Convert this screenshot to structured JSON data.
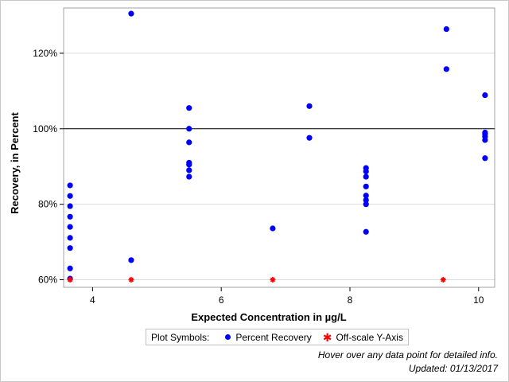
{
  "legend": {
    "title": "Plot Symbols:",
    "items": [
      {
        "label": "Percent Recovery",
        "symbol": "dot-icon",
        "color": "#0000ff"
      },
      {
        "label": "Off-scale Y-Axis",
        "symbol": "asterisk-icon",
        "color": "#ff0000"
      }
    ]
  },
  "footnotes": {
    "hover": "Hover over any data point for detailed info.",
    "updated": "Updated: 01/13/2017"
  },
  "chart_data": {
    "type": "scatter",
    "title": "",
    "xlabel": "Expected Concentration in µg/L",
    "ylabel": "Recovery, in Percent",
    "xlim": [
      3.55,
      10.25
    ],
    "ylim": [
      58.0,
      132.0
    ],
    "xticks": [
      4,
      6,
      8,
      10
    ],
    "xtick_labels": [
      "4",
      "6",
      "8",
      "10"
    ],
    "yticks": [
      60,
      80,
      100,
      120
    ],
    "ytick_labels": [
      "60%",
      "80%",
      "100%",
      "120%"
    ],
    "reference_line": 100,
    "grid": "horizontal",
    "colors": {
      "recovery": "#0000ff",
      "offscale": "#ff0000",
      "grid": "#dcdcdc",
      "reference": "#000000"
    },
    "series": [
      {
        "name": "Percent Recovery",
        "marker": "circle",
        "points": [
          [
            3.65,
            85.0
          ],
          [
            3.65,
            82.2
          ],
          [
            3.65,
            79.5
          ],
          [
            3.65,
            76.7
          ],
          [
            3.65,
            74.0
          ],
          [
            3.65,
            71.1
          ],
          [
            3.65,
            68.4
          ],
          [
            3.65,
            63.0
          ],
          [
            3.65,
            60.3
          ],
          [
            4.6,
            130.5
          ],
          [
            4.6,
            65.2
          ],
          [
            5.5,
            105.5
          ],
          [
            5.5,
            100.0
          ],
          [
            5.5,
            96.4
          ],
          [
            5.5,
            91.0
          ],
          [
            5.5,
            90.5
          ],
          [
            5.5,
            89.0
          ],
          [
            5.5,
            87.3
          ],
          [
            6.8,
            73.6
          ],
          [
            7.37,
            106.0
          ],
          [
            7.37,
            97.6
          ],
          [
            8.25,
            89.6
          ],
          [
            8.25,
            88.7
          ],
          [
            8.25,
            87.3
          ],
          [
            8.25,
            84.7
          ],
          [
            8.25,
            82.3
          ],
          [
            8.25,
            81.1
          ],
          [
            8.25,
            80.0
          ],
          [
            8.25,
            72.7
          ],
          [
            9.5,
            126.4
          ],
          [
            9.5,
            115.8
          ],
          [
            10.1,
            108.9
          ],
          [
            10.1,
            99.0
          ],
          [
            10.1,
            98.6
          ],
          [
            10.1,
            97.9
          ],
          [
            10.1,
            97.0
          ],
          [
            10.1,
            92.2
          ]
        ]
      },
      {
        "name": "Off-scale Y-Axis",
        "marker": "asterisk",
        "points": [
          [
            3.65,
            60.0
          ],
          [
            4.6,
            60.0
          ],
          [
            6.8,
            60.0
          ],
          [
            9.45,
            60.0
          ]
        ]
      }
    ]
  }
}
